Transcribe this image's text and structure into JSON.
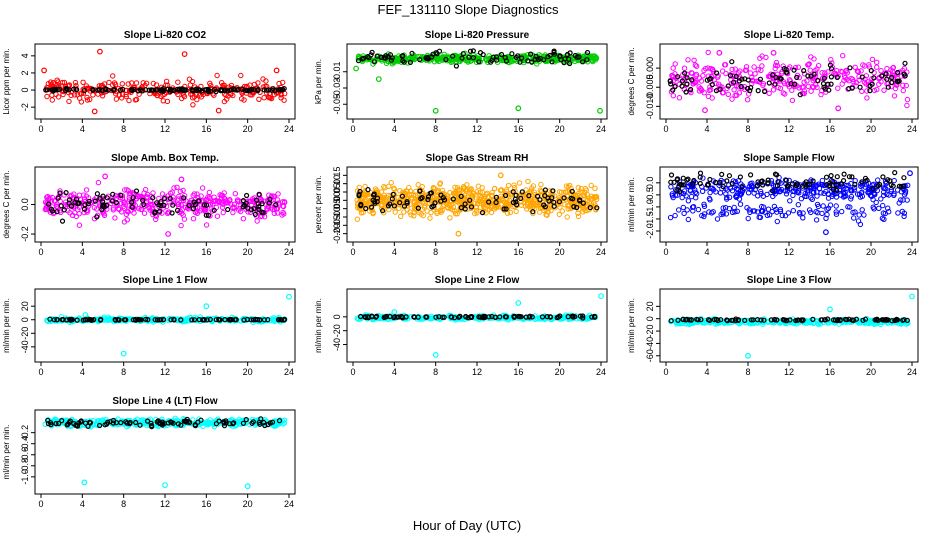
{
  "page": {
    "title": "FEF_131110  Slope Diagnostics",
    "xlabel": "Hour of Day (UTC)"
  },
  "chart_data": [
    {
      "type": "scatter",
      "title": "Slope Li-820 CO2",
      "ylabel": "Licor ppm per min.",
      "xlim": [
        0,
        24
      ],
      "ylim": [
        -2.8,
        4.8
      ],
      "xticks": [
        0,
        4,
        8,
        12,
        16,
        20,
        24
      ],
      "yticks": [
        -2,
        0,
        2,
        4
      ],
      "ytick_labels": [
        "-2",
        "0",
        "2",
        "4"
      ],
      "colors": {
        "data": "#ff0000",
        "overlay": "#000000"
      },
      "series": [
        {
          "name": "",
          "role": "data",
          "pattern": {
            "n": 280,
            "center": 0,
            "spread": 1.0,
            "outliers": [
              [
                5.7,
                4.5
              ],
              [
                13.9,
                4.2
              ],
              [
                22.8,
                2.3
              ],
              [
                0.3,
                2.3
              ],
              [
                5.2,
                -2.5
              ],
              [
                17.2,
                -2.4
              ]
            ]
          }
        },
        {
          "name": "",
          "role": "overlay",
          "pattern": {
            "n": 120,
            "center": 0,
            "spread": 0.12
          }
        }
      ]
    },
    {
      "type": "scatter",
      "title": "Slope Li-820 Pressure",
      "ylabel": "kPa per min.",
      "xlim": [
        0,
        24
      ],
      "ylim": [
        -0.062,
        0.018
      ],
      "xticks": [
        0,
        4,
        8,
        12,
        16,
        20,
        24
      ],
      "yticks": [
        -0.05,
        -0.03,
        -0.01
      ],
      "ytick_labels": [
        "-0.05",
        "-0.03",
        "-0.01"
      ],
      "colors": {
        "data": "#00cc00",
        "overlay": "#000000"
      },
      "series": [
        {
          "name": "",
          "role": "data",
          "pattern": {
            "n": 420,
            "center": 0.006,
            "spread": 0.004,
            "outliers": [
              [
                8.0,
                -0.058
              ],
              [
                16.0,
                -0.055
              ],
              [
                23.9,
                -0.058
              ],
              [
                2.5,
                -0.019
              ],
              [
                0.3,
                -0.006
              ]
            ]
          }
        },
        {
          "name": "",
          "role": "overlay",
          "pattern": {
            "n": 90,
            "center": 0.008,
            "spread": 0.006
          }
        }
      ]
    },
    {
      "type": "scatter",
      "title": "Slope Li-820 Temp.",
      "ylabel": "degrees C per min.",
      "xlim": [
        0,
        24
      ],
      "ylim": [
        -0.012,
        0.005
      ],
      "xticks": [
        0,
        4,
        8,
        12,
        16,
        20,
        24
      ],
      "yticks": [
        -0.01,
        -0.005,
        0.0
      ],
      "ytick_labels": [
        "-0.010",
        "-0.005",
        "0.000"
      ],
      "colors": {
        "data": "#ff00ff",
        "overlay": "#000000"
      },
      "series": [
        {
          "name": "",
          "role": "data",
          "pattern": {
            "n": 330,
            "center": -0.003,
            "spread": 0.0042,
            "outliers": [
              [
                5.2,
                0.004
              ],
              [
                10.5,
                0.004
              ],
              [
                3.8,
                -0.011
              ],
              [
                16.8,
                -0.0105
              ]
            ]
          }
        },
        {
          "name": "",
          "role": "overlay",
          "pattern": {
            "n": 90,
            "center": -0.003,
            "spread": 0.003
          }
        }
      ]
    },
    {
      "type": "scatter",
      "title": "Slope Amb. Box Temp.",
      "ylabel": "degrees C per min.",
      "xlim": [
        0,
        24
      ],
      "ylim": [
        -0.22,
        0.22
      ],
      "xticks": [
        0,
        4,
        8,
        12,
        16,
        20,
        24
      ],
      "yticks": [
        -0.2,
        0.0
      ],
      "ytick_labels": [
        "-0.2",
        "0.0"
      ],
      "colors": {
        "data": "#ff00ff",
        "overlay": "#000000"
      },
      "series": [
        {
          "name": "",
          "role": "data",
          "pattern": {
            "n": 420,
            "center": 0.0,
            "spread": 0.08,
            "outliers": [
              [
                12.3,
                -0.2
              ],
              [
                6.2,
                0.19
              ],
              [
                13.6,
                0.17
              ]
            ]
          }
        },
        {
          "name": "",
          "role": "overlay",
          "pattern": {
            "n": 90,
            "center": 0.0,
            "spread": 0.06
          }
        }
      ]
    },
    {
      "type": "scatter",
      "title": "Slope Gas Stream RH",
      "ylabel": "percent per min.",
      "xlim": [
        0,
        24
      ],
      "ylim": [
        -0.22,
        0.17
      ],
      "xticks": [
        0,
        4,
        8,
        12,
        16,
        20,
        24
      ],
      "yticks": [
        -0.2,
        -0.15,
        -0.1,
        -0.05,
        0.0,
        0.05,
        0.1,
        0.15
      ],
      "ytick_labels": [
        "-0.20",
        "-0.15",
        "-0.10",
        "-0.05",
        "0.00",
        "0.05",
        "0.10",
        "0.15"
      ],
      "colors": {
        "data": "#ffa500",
        "overlay": "#000000"
      },
      "series": [
        {
          "name": "",
          "role": "data",
          "pattern": {
            "n": 650,
            "center": 0.0,
            "spread": 0.07,
            "outliers": [
              [
                10.2,
                -0.2
              ],
              [
                14.3,
                0.15
              ]
            ]
          }
        },
        {
          "name": "",
          "role": "overlay",
          "pattern": {
            "n": 90,
            "center": 0.0,
            "spread": 0.05
          }
        }
      ]
    },
    {
      "type": "scatter",
      "title": "Slope Sample Flow",
      "ylabel": "ml/min per min.",
      "xlim": [
        0,
        24
      ],
      "ylim": [
        -2.25,
        0.45
      ],
      "xticks": [
        0,
        4,
        8,
        12,
        16,
        20,
        24
      ],
      "yticks": [
        -2.0,
        -1.5,
        -1.0,
        -0.5,
        0.0
      ],
      "ytick_labels": [
        "-2.0",
        "-1.5",
        "-1.0",
        "-0.5",
        "0.0"
      ],
      "colors": {
        "data": "#0000ff",
        "overlay": "#000000"
      },
      "series": [
        {
          "name": "",
          "role": "data",
          "pattern": {
            "n": 300,
            "center": -0.3,
            "spread": 0.35,
            "outliers": [
              [
                23.8,
                0.4
              ],
              [
                15.6,
                -2.05
              ]
            ]
          }
        },
        {
          "name": "",
          "role": "data",
          "pattern": {
            "n": 110,
            "center": -1.2,
            "spread": 0.35
          }
        },
        {
          "name": "",
          "role": "overlay",
          "pattern": {
            "n": 90,
            "center": 0.05,
            "spread": 0.3
          }
        }
      ]
    },
    {
      "type": "scatter",
      "title": "Slope Line 1 Flow",
      "ylabel": "ml/min per min.",
      "xlim": [
        0,
        24
      ],
      "ylim": [
        -55,
        38
      ],
      "xticks": [
        0,
        4,
        8,
        12,
        16,
        20,
        24
      ],
      "yticks": [
        -40,
        -20,
        0,
        20
      ],
      "ytick_labels": [
        "-40",
        "-20",
        "0",
        "20"
      ],
      "colors": {
        "data": "#00ffff",
        "overlay": "#000000"
      },
      "series": [
        {
          "name": "",
          "role": "data",
          "pattern": {
            "n": 320,
            "center": 0,
            "spread": 2.5,
            "outliers": [
              [
                8.0,
                -50
              ],
              [
                16.0,
                20
              ],
              [
                24.0,
                34
              ],
              [
                4.3,
                7
              ]
            ]
          }
        },
        {
          "name": "",
          "role": "overlay",
          "pattern": {
            "n": 90,
            "center": 0,
            "spread": 0.5
          }
        }
      ]
    },
    {
      "type": "scatter",
      "title": "Slope Line 2 Flow",
      "ylabel": "ml/min per min.",
      "xlim": [
        0,
        24
      ],
      "ylim": [
        -58,
        33
      ],
      "xticks": [
        0,
        4,
        8,
        12,
        16,
        20,
        24
      ],
      "yticks": [
        -40,
        -20,
        0
      ],
      "ytick_labels": [
        "-40",
        "-20",
        "0"
      ],
      "colors": {
        "data": "#00ffff",
        "overlay": "#000000"
      },
      "series": [
        {
          "name": "",
          "role": "data",
          "pattern": {
            "n": 320,
            "center": -1,
            "spread": 2.5,
            "outliers": [
              [
                8.0,
                -55
              ],
              [
                16.0,
                20
              ],
              [
                24.0,
                30
              ],
              [
                4.0,
                7
              ]
            ]
          }
        },
        {
          "name": "",
          "role": "overlay",
          "pattern": {
            "n": 90,
            "center": 0,
            "spread": 1.0
          }
        }
      ]
    },
    {
      "type": "scatter",
      "title": "Slope Line 3 Flow",
      "ylabel": "ml/min per min.",
      "xlim": [
        0,
        24
      ],
      "ylim": [
        -62,
        40
      ],
      "xticks": [
        0,
        4,
        8,
        12,
        16,
        20,
        24
      ],
      "yticks": [
        -60,
        -40,
        -20,
        0,
        20
      ],
      "ytick_labels": [
        "-60",
        "-40",
        "-20",
        "0",
        "20"
      ],
      "colors": {
        "data": "#00ffff",
        "overlay": "#000000"
      },
      "series": [
        {
          "name": "",
          "role": "data",
          "pattern": {
            "n": 340,
            "center": -5,
            "spread": 3.0,
            "outliers": [
              [
                8.0,
                -60
              ],
              [
                16.0,
                15
              ],
              [
                24.0,
                36
              ]
            ]
          }
        },
        {
          "name": "",
          "role": "overlay",
          "pattern": {
            "n": 90,
            "center": -2,
            "spread": 1.2
          }
        }
      ]
    },
    {
      "type": "scatter",
      "title": "Slope Line 4 (LT) Flow",
      "ylabel": "ml/min per min.",
      "xlim": [
        0,
        24
      ],
      "ylim": [
        -1.22,
        0.12
      ],
      "xticks": [
        0,
        4,
        8,
        12,
        16,
        20,
        24
      ],
      "yticks": [
        -1.0,
        -0.8,
        -0.6,
        -0.4,
        -0.2
      ],
      "ytick_labels": [
        "-1.0",
        "-0.8",
        "-0.6",
        "-0.4",
        "-0.2"
      ],
      "colors": {
        "data": "#00ffff",
        "overlay": "#000000"
      },
      "series": [
        {
          "name": "",
          "role": "data",
          "pattern": {
            "n": 380,
            "center": -0.02,
            "spread": 0.05,
            "outliers": [
              [
                4.2,
                -1.1
              ],
              [
                12.0,
                -1.15
              ],
              [
                20.0,
                -1.17
              ]
            ]
          }
        },
        {
          "name": "",
          "role": "overlay",
          "pattern": {
            "n": 90,
            "center": -0.03,
            "spread": 0.05
          }
        }
      ]
    }
  ]
}
